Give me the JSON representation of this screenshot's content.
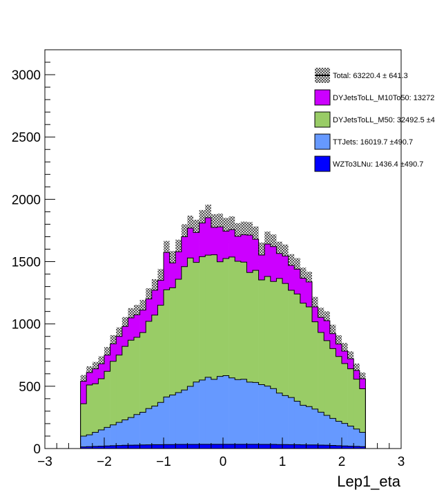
{
  "chart_data": {
    "type": "area",
    "subtype": "stacked-step-histogram",
    "title": "",
    "xlabel": "Lep1_eta",
    "ylabel": "",
    "xlim": [
      -3,
      3
    ],
    "ylim": [
      0,
      3200
    ],
    "x_ticks": [
      -3,
      -2,
      -1,
      0,
      1,
      2,
      3
    ],
    "x_tick_labels": [
      "−3",
      "−2",
      "−1",
      "0",
      "1",
      "2",
      "3"
    ],
    "y_ticks": [
      0,
      500,
      1000,
      1500,
      2000,
      2500,
      3000
    ],
    "y_tick_labels": [
      "0",
      "500",
      "1000",
      "1500",
      "2000",
      "2500",
      "3000"
    ],
    "legend_placement": "top-right",
    "grid": false,
    "bin_edges": [
      -2.4,
      -2.3,
      -2.2,
      -2.1,
      -2.0,
      -1.9,
      -1.8,
      -1.7,
      -1.6,
      -1.5,
      -1.4,
      -1.3,
      -1.2,
      -1.1,
      -1.0,
      -0.9,
      -0.8,
      -0.7,
      -0.6,
      -0.5,
      -0.4,
      -0.3,
      -0.2,
      -0.1,
      0.0,
      0.1,
      0.2,
      0.3,
      0.4,
      0.5,
      0.6,
      0.7,
      0.8,
      0.9,
      1.0,
      1.1,
      1.2,
      1.3,
      1.4,
      1.5,
      1.6,
      1.7,
      1.8,
      1.9,
      2.0,
      2.1,
      2.2,
      2.3,
      2.4
    ],
    "series": [
      {
        "name": "WZTo3LNu: 1436.4 ±490.7",
        "color": "#0000ff",
        "values": [
          13,
          15,
          17,
          19,
          21,
          23,
          24,
          26,
          27,
          28,
          29,
          30,
          31,
          31,
          32,
          32,
          33,
          33,
          33,
          33,
          34,
          34,
          34,
          34,
          34,
          34,
          34,
          34,
          34,
          34,
          33,
          33,
          33,
          32,
          32,
          31,
          31,
          30,
          29,
          29,
          28,
          27,
          25,
          23,
          21,
          19,
          17,
          15
        ]
      },
      {
        "name": "TTJets: 16019.7 ±490.7",
        "color": "#6699ff",
        "values": [
          87,
          95,
          113,
          131,
          149,
          167,
          186,
          204,
          222,
          245,
          262,
          291,
          310,
          339,
          382,
          398,
          416,
          437,
          466,
          501,
          516,
          538,
          521,
          545,
          551,
          533,
          519,
          522,
          499,
          496,
          480,
          468,
          448,
          413,
          393,
          379,
          349,
          317,
          308,
          288,
          264,
          239,
          217,
          196,
          181,
          161,
          140,
          115
        ]
      },
      {
        "name": "DYJetsToLL_M50: 32492.5 ±4",
        "color": "#99cc66",
        "values": [
          260,
          400,
          390,
          410,
          450,
          510,
          540,
          590,
          620,
          620,
          640,
          700,
          730,
          780,
          860,
          860,
          910,
          990,
          1030,
          960,
          990,
          980,
          1000,
          920,
          940,
          970,
          950,
          940,
          880,
          900,
          840,
          880,
          860,
          920,
          900,
          860,
          860,
          820,
          800,
          700,
          640,
          600,
          560,
          520,
          480,
          460,
          400,
          350
        ]
      },
      {
        "name": "DYJetsToLL_M10To50: 13272",
        "color": "#cc00ff",
        "values": [
          180,
          100,
          120,
          120,
          130,
          140,
          150,
          160,
          180,
          180,
          180,
          180,
          200,
          200,
          300,
          200,
          220,
          240,
          240,
          240,
          270,
          300,
          220,
          280,
          220,
          220,
          200,
          220,
          300,
          250,
          200,
          260,
          280,
          200,
          220,
          200,
          200,
          200,
          200,
          120,
          120,
          160,
          120,
          100,
          100,
          80,
          70,
          80
        ]
      }
    ],
    "total": {
      "name": "Total: 63220.4 ± 641.3",
      "color": "#000000",
      "uncertainty_band": [
        50,
        50,
        55,
        60,
        65,
        70,
        72,
        75,
        78,
        80,
        82,
        85,
        88,
        90,
        92,
        95,
        97,
        100,
        100,
        102,
        104,
        105,
        106,
        106,
        106,
        106,
        106,
        105,
        104,
        102,
        100,
        100,
        97,
        95,
        92,
        90,
        88,
        85,
        82,
        80,
        78,
        75,
        72,
        70,
        65,
        60,
        55,
        50
      ]
    },
    "legend_order": [
      "Total: 63220.4 ± 641.3",
      "DYJetsToLL_M10To50: 13272",
      "DYJetsToLL_M50: 32492.5 ±4",
      "TTJets: 16019.7 ±490.7",
      "WZTo3LNu: 1436.4 ±490.7"
    ]
  }
}
